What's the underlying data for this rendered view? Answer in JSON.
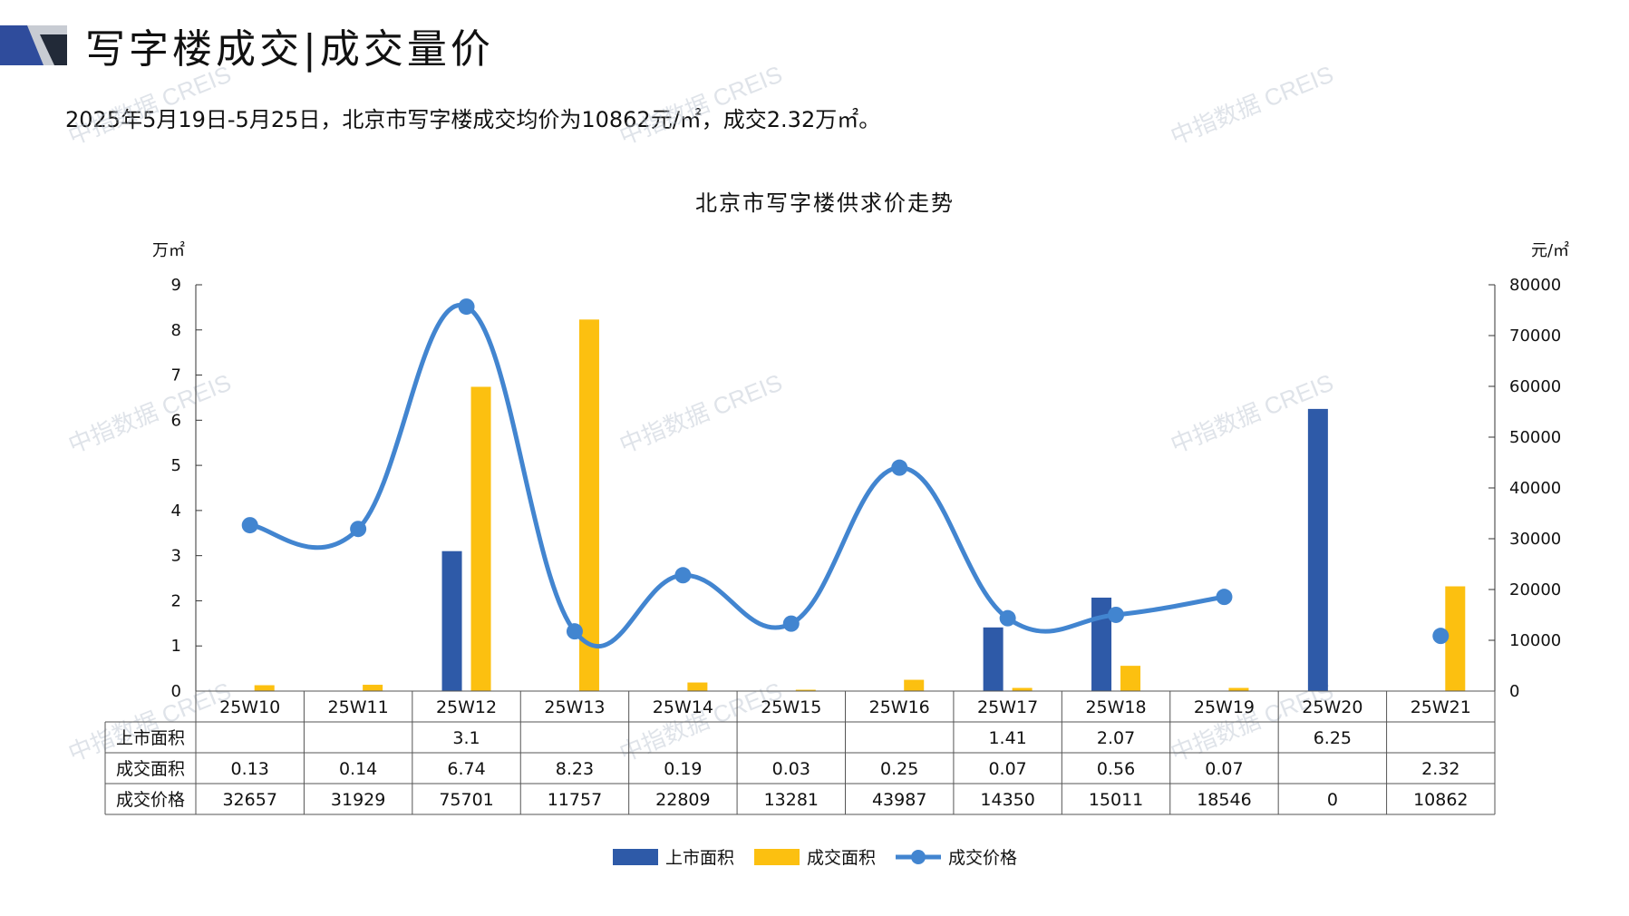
{
  "header": {
    "title": "写字楼成交|成交量价",
    "subtitle": "2025年5月19日-5月25日，北京市写字楼成交均价为10862元/㎡，成交2.32万㎡。"
  },
  "watermark": "中指数据 CREIS",
  "colors": {
    "supply": "#2e5aa8",
    "deal_area": "#fcc010",
    "price": "#4285d0",
    "logo_dark": "#2f4c9c",
    "logo_gray": "#c8ccd3"
  },
  "chart_data": {
    "type": "bar",
    "title": "北京市写字楼供求价走势",
    "y_left_unit": "万㎡",
    "y_right_unit": "元/㎡",
    "y_left_range": [
      0,
      9
    ],
    "y_left_ticks": [
      "0",
      "1",
      "2",
      "3",
      "4",
      "5",
      "6",
      "7",
      "8",
      "9"
    ],
    "y_right_range": [
      0,
      80000
    ],
    "y_right_ticks": [
      "0",
      "10000",
      "20000",
      "30000",
      "40000",
      "50000",
      "60000",
      "70000",
      "80000"
    ],
    "categories": [
      "25W10",
      "25W11",
      "25W12",
      "25W13",
      "25W14",
      "25W15",
      "25W16",
      "25W17",
      "25W18",
      "25W19",
      "25W20",
      "25W21"
    ],
    "series": [
      {
        "name": "上市面积",
        "kind": "bar",
        "axis": "left",
        "values": [
          null,
          null,
          3.1,
          null,
          null,
          null,
          null,
          1.41,
          2.07,
          null,
          6.25,
          null
        ],
        "labels": [
          "",
          "",
          "3.1",
          "",
          "",
          "",
          "",
          "1.41",
          "2.07",
          "",
          "6.25",
          ""
        ]
      },
      {
        "name": "成交面积",
        "kind": "bar",
        "axis": "left",
        "values": [
          0.13,
          0.14,
          6.74,
          8.23,
          0.19,
          0.03,
          0.25,
          0.07,
          0.56,
          0.07,
          null,
          2.32
        ],
        "labels": [
          "0.13",
          "0.14",
          "6.74",
          "8.23",
          "0.19",
          "0.03",
          "0.25",
          "0.07",
          "0.56",
          "0.07",
          "",
          "2.32"
        ]
      },
      {
        "name": "成交价格",
        "kind": "line",
        "axis": "right",
        "values": [
          32657,
          31929,
          75701,
          11757,
          22809,
          13281,
          43987,
          14350,
          15011,
          18546,
          null,
          10862
        ],
        "labels": [
          "32657",
          "31929",
          "75701",
          "11757",
          "22809",
          "13281",
          "43987",
          "14350",
          "15011",
          "18546",
          "0",
          "10862"
        ]
      }
    ],
    "legend_position": "bottom",
    "grid": false
  }
}
